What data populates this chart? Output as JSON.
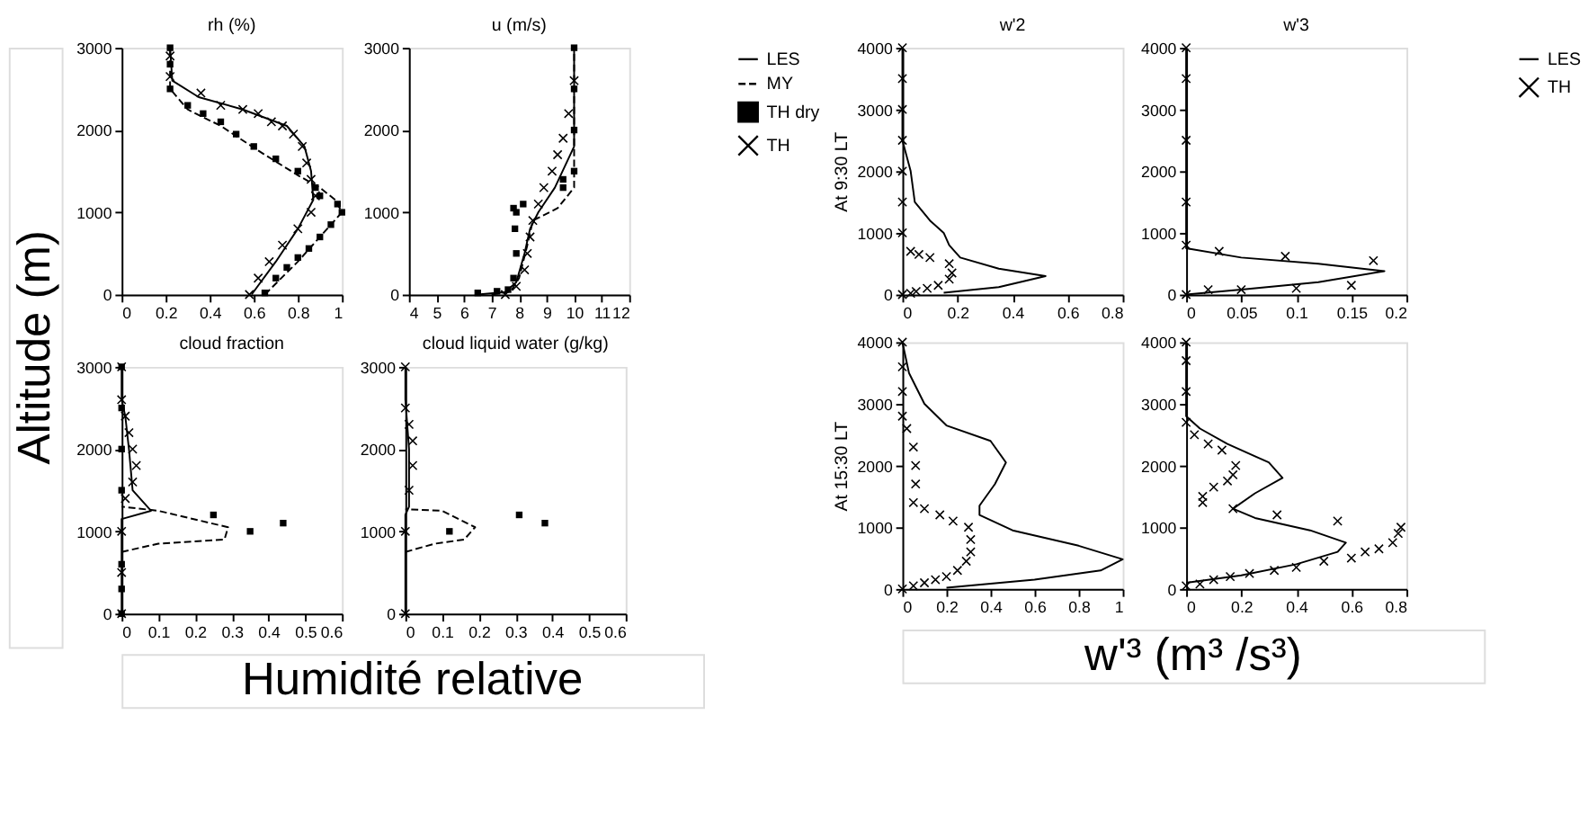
{
  "chart_data": [
    {
      "type": "line",
      "title": "rh (%)",
      "xlim": [
        0,
        1
      ],
      "xticks": [
        0,
        0.2,
        0.4,
        0.6,
        0.8,
        1
      ],
      "ylim": [
        0,
        3000
      ],
      "yticks": [
        0,
        1000,
        2000,
        3000
      ],
      "annotations": [
        "Altitude (m)"
      ],
      "series": [
        {
          "line_style": "solid",
          "color": "#000000",
          "x": [
            0.59,
            0.7,
            0.8,
            0.87,
            0.86,
            0.83,
            0.75,
            0.55,
            0.35,
            0.23,
            0.22
          ],
          "values": [
            0,
            400,
            800,
            1150,
            1500,
            1800,
            2050,
            2250,
            2400,
            2600,
            3000
          ]
        },
        {
          "line_style": "dashed",
          "color": "#000000",
          "x": [
            0.65,
            0.8,
            1.0,
            0.97,
            0.9,
            0.8,
            0.62,
            0.45,
            0.3,
            0.22,
            0.22
          ],
          "values": [
            0,
            400,
            1000,
            1150,
            1300,
            1450,
            1750,
            2050,
            2250,
            2500,
            3000
          ]
        },
        {
          "type": "scatter",
          "marker": "square",
          "color": "#000000",
          "x": [
            0.65,
            0.7,
            0.75,
            0.8,
            0.85,
            0.9,
            0.95,
            1.0,
            0.98,
            0.9,
            0.88,
            0.8,
            0.7,
            0.6,
            0.52,
            0.45,
            0.37,
            0.3,
            0.22,
            0.22,
            0.22
          ],
          "values": [
            20,
            200,
            330,
            450,
            560,
            700,
            850,
            1000,
            1100,
            1200,
            1300,
            1500,
            1650,
            1800,
            1950,
            2100,
            2200,
            2300,
            2500,
            2800,
            3000
          ]
        },
        {
          "type": "scatter",
          "marker": "cross",
          "color": "#000000",
          "x": [
            0.58,
            0.62,
            0.67,
            0.73,
            0.8,
            0.86,
            0.88,
            0.86,
            0.84,
            0.82,
            0.78,
            0.73,
            0.68,
            0.62,
            0.55,
            0.45,
            0.36,
            0.22,
            0.22
          ],
          "values": [
            0,
            200,
            400,
            600,
            800,
            1000,
            1200,
            1400,
            1600,
            1800,
            1950,
            2050,
            2100,
            2200,
            2250,
            2300,
            2450,
            2650,
            2900
          ]
        }
      ]
    },
    {
      "type": "line",
      "title": "u (m/s)",
      "xlim": [
        4,
        12
      ],
      "xticks": [
        4,
        5,
        6,
        7,
        8,
        9,
        10,
        11,
        12
      ],
      "ylim": [
        0,
        3000
      ],
      "yticks": [
        0,
        1000,
        2000,
        3000
      ],
      "legend": "right",
      "series": [
        {
          "name": "LES",
          "line_style": "solid",
          "color": "#000000",
          "x": [
            6.5,
            7.5,
            7.9,
            8.2,
            8.4,
            8.7,
            9.3,
            10,
            10
          ],
          "values": [
            0,
            30,
            150,
            500,
            800,
            1000,
            1300,
            1800,
            3000
          ]
        },
        {
          "name": "MY",
          "line_style": "dashed",
          "color": "#000000",
          "x": [
            7,
            7.7,
            8.0,
            8.3,
            8.5,
            9.4,
            10,
            10
          ],
          "values": [
            0,
            40,
            200,
            600,
            900,
            1050,
            1300,
            3000
          ]
        },
        {
          "name": "TH dry",
          "type": "scatter",
          "marker": "square",
          "color": "#000000",
          "x": [
            6.5,
            7.2,
            7.6,
            7.8,
            7.9,
            7.85,
            7.9,
            7.8,
            8.15,
            9.6,
            9.6,
            10,
            10,
            10,
            10
          ],
          "values": [
            20,
            40,
            60,
            200,
            500,
            800,
            1000,
            1050,
            1100,
            1300,
            1400,
            1500,
            2000,
            2500,
            3000
          ]
        },
        {
          "name": "TH",
          "type": "scatter",
          "marker": "cross",
          "color": "#000000",
          "x": [
            7.5,
            7.9,
            8.2,
            8.3,
            8.4,
            8.5,
            8.7,
            8.9,
            9.2,
            9.4,
            9.6,
            9.8,
            10
          ],
          "values": [
            0,
            100,
            300,
            500,
            700,
            900,
            1100,
            1300,
            1500,
            1700,
            1900,
            2200,
            2600
          ]
        }
      ]
    },
    {
      "type": "line",
      "title": "cloud fraction",
      "xlim": [
        0,
        0.6
      ],
      "xticks": [
        0,
        0.1,
        0.2,
        0.3,
        0.4,
        0.5,
        0.6
      ],
      "ylim": [
        0,
        3000
      ],
      "yticks": [
        0,
        1000,
        2000,
        3000
      ],
      "annotations": [
        "Humidité relative"
      ],
      "series": [
        {
          "line_style": "solid",
          "color": "#000000",
          "x": [
            0,
            0,
            0.08,
            0.03,
            0.02,
            0.01,
            0,
            0
          ],
          "values": [
            0,
            1150,
            1250,
            1500,
            2000,
            2400,
            2600,
            3000
          ]
        },
        {
          "line_style": "dashed",
          "color": "#000000",
          "x": [
            0,
            0.1,
            0.28,
            0.29,
            0.1,
            0
          ],
          "values": [
            750,
            850,
            900,
            1050,
            1250,
            1300
          ]
        },
        {
          "type": "scatter",
          "marker": "square",
          "color": "#000000",
          "x": [
            0,
            0,
            0,
            0.35,
            0.44,
            0.25,
            0,
            0,
            0,
            0
          ],
          "values": [
            0,
            300,
            600,
            1000,
            1100,
            1200,
            1500,
            2000,
            2500,
            3000
          ]
        },
        {
          "type": "scatter",
          "marker": "cross",
          "color": "#000000",
          "x": [
            0,
            0,
            0,
            0.01,
            0.03,
            0.04,
            0.03,
            0.02,
            0.01,
            0,
            0
          ],
          "values": [
            0,
            500,
            1000,
            1400,
            1600,
            1800,
            2000,
            2200,
            2400,
            2600,
            3000
          ]
        }
      ]
    },
    {
      "type": "line",
      "title": "cloud liquid water (g/kg)",
      "xlim": [
        0,
        0.6
      ],
      "xticks": [
        0,
        0.1,
        0.2,
        0.3,
        0.4,
        0.5,
        0.6
      ],
      "ylim": [
        0,
        3000
      ],
      "yticks": [
        0,
        1000,
        2000,
        3000
      ],
      "series": [
        {
          "line_style": "solid",
          "color": "#000000",
          "x": [
            0,
            0,
            0.01,
            0.01,
            0,
            0
          ],
          "values": [
            0,
            1200,
            1300,
            2000,
            2600,
            3000
          ]
        },
        {
          "line_style": "dashed",
          "color": "#000000",
          "x": [
            0,
            0.08,
            0.16,
            0.19,
            0.1,
            0
          ],
          "values": [
            750,
            850,
            900,
            1050,
            1250,
            1270
          ]
        },
        {
          "type": "scatter",
          "marker": "square",
          "color": "#000000",
          "x": [
            0.12,
            0.38,
            0.31
          ],
          "values": [
            1000,
            1100,
            1200
          ]
        },
        {
          "type": "scatter",
          "marker": "cross",
          "color": "#000000",
          "x": [
            0,
            0,
            0.01,
            0.02,
            0.02,
            0.01,
            0,
            0
          ],
          "values": [
            0,
            1000,
            1500,
            1800,
            2100,
            2300,
            2500,
            3000
          ]
        }
      ]
    },
    {
      "type": "line",
      "title": "w'2",
      "ylabel": "At 9:30 LT",
      "xlim": [
        0,
        0.8
      ],
      "xticks": [
        0,
        0.2,
        0.4,
        0.6,
        0.8
      ],
      "ylim": [
        0,
        4000
      ],
      "yticks": [
        0,
        1000,
        2000,
        3000,
        4000
      ],
      "series": [
        {
          "line_style": "solid",
          "color": "#000000",
          "x": [
            0.15,
            0.35,
            0.52,
            0.35,
            0.21,
            0.17,
            0.15,
            0.1,
            0.045,
            0.03,
            0,
            0
          ],
          "values": [
            30,
            120,
            300,
            420,
            600,
            800,
            1000,
            1200,
            1500,
            2000,
            2500,
            4000
          ]
        },
        {
          "type": "scatter",
          "marker": "cross",
          "color": "#000000",
          "x": [
            0,
            0.03,
            0.05,
            0.09,
            0.13,
            0.17,
            0.18,
            0.17,
            0.1,
            0.06,
            0.03,
            0,
            0,
            0,
            0,
            0,
            0,
            0
          ],
          "values": [
            0,
            20,
            50,
            100,
            150,
            250,
            350,
            500,
            600,
            650,
            700,
            1000,
            1500,
            2000,
            2500,
            3000,
            3500,
            4000
          ]
        }
      ]
    },
    {
      "type": "line",
      "title": "w'3",
      "xlim": [
        0,
        0.2
      ],
      "xticks": [
        0,
        0.05,
        0.1,
        0.15,
        0.2
      ],
      "ylim": [
        0,
        4000
      ],
      "yticks": [
        0,
        1000,
        2000,
        3000,
        4000
      ],
      "legend": "right",
      "series": [
        {
          "name": "LES",
          "line_style": "solid",
          "color": "#000000",
          "x": [
            0,
            0.05,
            0.12,
            0.18,
            0.12,
            0.05,
            0,
            0
          ],
          "values": [
            0,
            80,
            200,
            380,
            500,
            600,
            750,
            4000
          ]
        },
        {
          "name": "TH",
          "type": "scatter",
          "marker": "cross",
          "color": "#000000",
          "x": [
            0,
            0.02,
            0.05,
            0.1,
            0.15,
            0.17,
            0.09,
            0.03,
            0,
            0,
            0,
            0,
            0
          ],
          "values": [
            0,
            80,
            80,
            100,
            150,
            550,
            620,
            700,
            800,
            1500,
            2500,
            3500,
            4000
          ]
        }
      ]
    },
    {
      "type": "line",
      "ylabel": "At 15:30 LT",
      "xlim": [
        0,
        1
      ],
      "xticks": [
        0,
        0.2,
        0.4,
        0.6,
        0.8,
        1
      ],
      "ylim": [
        0,
        4000
      ],
      "yticks": [
        0,
        1000,
        2000,
        3000,
        4000
      ],
      "series": [
        {
          "line_style": "solid",
          "color": "#000000",
          "x": [
            0.2,
            0.6,
            0.9,
            1.0,
            0.8,
            0.5,
            0.35,
            0.35,
            0.42,
            0.47,
            0.4,
            0.2,
            0.1,
            0.03,
            0
          ],
          "values": [
            20,
            150,
            300,
            480,
            700,
            950,
            1200,
            1350,
            1700,
            2050,
            2400,
            2650,
            3000,
            3500,
            4000
          ]
        },
        {
          "type": "scatter",
          "marker": "cross",
          "color": "#000000",
          "x": [
            0,
            0.05,
            0.1,
            0.15,
            0.2,
            0.25,
            0.29,
            0.31,
            0.31,
            0.3,
            0.23,
            0.17,
            0.1,
            0.05,
            0.06,
            0.06,
            0.05,
            0.02,
            0,
            0,
            0,
            0
          ],
          "values": [
            0,
            50,
            100,
            150,
            200,
            300,
            450,
            600,
            800,
            1000,
            1100,
            1200,
            1300,
            1400,
            1700,
            2000,
            2300,
            2600,
            2800,
            3200,
            3600,
            4000
          ]
        }
      ]
    },
    {
      "type": "line",
      "xlim": [
        0,
        0.8
      ],
      "xticks": [
        0,
        0.2,
        0.4,
        0.6,
        0.8
      ],
      "ylim": [
        0,
        4000
      ],
      "yticks": [
        0,
        1000,
        2000,
        3000,
        4000
      ],
      "annotations": [
        "w'³ (m³ /s³)"
      ],
      "series": [
        {
          "line_style": "solid",
          "color": "#000000",
          "x": [
            0,
            0.2,
            0.4,
            0.55,
            0.58,
            0.45,
            0.25,
            0.17,
            0.25,
            0.35,
            0.3,
            0.15,
            0.05,
            0,
            0
          ],
          "values": [
            100,
            220,
            400,
            600,
            750,
            950,
            1150,
            1300,
            1550,
            1800,
            2050,
            2350,
            2600,
            2800,
            4000
          ]
        },
        {
          "type": "scatter",
          "marker": "cross",
          "color": "#000000",
          "x": [
            0,
            0.05,
            0.1,
            0.16,
            0.23,
            0.32,
            0.4,
            0.5,
            0.6,
            0.65,
            0.7,
            0.75,
            0.77,
            0.78,
            0.55,
            0.33,
            0.17,
            0.06,
            0.06,
            0.1,
            0.15,
            0.17,
            0.18,
            0.13,
            0.08,
            0.03,
            0,
            0,
            0,
            0
          ],
          "values": [
            50,
            80,
            150,
            200,
            250,
            300,
            350,
            450,
            500,
            600,
            650,
            750,
            900,
            1000,
            1100,
            1200,
            1300,
            1400,
            1500,
            1650,
            1750,
            1850,
            2000,
            2250,
            2350,
            2500,
            2700,
            3200,
            3700,
            4000
          ]
        }
      ]
    }
  ]
}
